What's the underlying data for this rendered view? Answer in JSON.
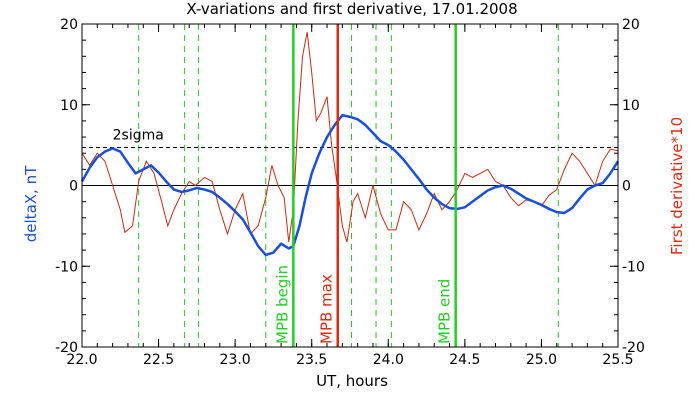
{
  "chart_data": {
    "type": "line",
    "title": "X-variations and first derivative, 17.01.2008",
    "xlabel": "UT, hours",
    "ylabel_left": "deltaX, nT",
    "ylabel_right": "First derivative*10",
    "xlim": [
      22.0,
      25.5
    ],
    "ylim": [
      -20,
      20
    ],
    "x_ticks": [
      "22.0",
      "22.5",
      "23.0",
      "23.5",
      "24.0",
      "24.5",
      "25.0",
      "25.5"
    ],
    "y_ticks": [
      "-20",
      "-10",
      "0",
      "10",
      "20"
    ],
    "colors": {
      "deltaX": "#1a4fd8",
      "derivative": "#cc2a10",
      "mpb_begin": "#22d022",
      "mpb_max": "#dd2a10",
      "mpb_end": "#22d022",
      "dashed_lines": "#22c822",
      "threshold": "#000000",
      "ylabel_left": "#1a4fd8",
      "ylabel_right": "#dd2a10"
    },
    "threshold": {
      "label": "2sigma",
      "value": 4.7
    },
    "zero_line": 0,
    "dashed_vlines": [
      22.37,
      22.67,
      22.76,
      23.2,
      23.76,
      23.92,
      24.02,
      25.11
    ],
    "markers": [
      {
        "label": "MPB begin",
        "x": 23.38
      },
      {
        "label": "MPB max",
        "x": 23.67
      },
      {
        "label": "MPB end",
        "x": 24.44
      }
    ],
    "series": [
      {
        "x": [
          22.0,
          22.05,
          22.1,
          22.15,
          22.2,
          22.25,
          22.3,
          22.35,
          22.4,
          22.45,
          22.5,
          22.55,
          22.6,
          22.65,
          22.7,
          22.75,
          22.8,
          22.85,
          22.9,
          22.95,
          23.0,
          23.05,
          23.1,
          23.15,
          23.2,
          23.25,
          23.3,
          23.35,
          23.38,
          23.42,
          23.46,
          23.5,
          23.55,
          23.6,
          23.65,
          23.7,
          23.75,
          23.8,
          23.85,
          23.9,
          23.95,
          24.0,
          24.05,
          24.1,
          24.15,
          24.2,
          24.25,
          24.3,
          24.35,
          24.4,
          24.45,
          24.5,
          24.55,
          24.6,
          24.65,
          24.7,
          24.75,
          24.8,
          24.85,
          24.9,
          24.95,
          25.0,
          25.05,
          25.1,
          25.15,
          25.2,
          25.25,
          25.3,
          25.35,
          25.4,
          25.45,
          25.5
        ],
        "values": [
          0.5,
          2.2,
          3.5,
          4.2,
          4.6,
          4.2,
          2.8,
          1.5,
          2.0,
          2.5,
          1.6,
          0.5,
          -0.5,
          -0.8,
          -0.6,
          -0.3,
          -0.5,
          -0.8,
          -1.5,
          -2.3,
          -3.2,
          -4.2,
          -5.8,
          -7.5,
          -8.6,
          -8.3,
          -7.2,
          -7.8,
          -7.5,
          -5.0,
          -1.5,
          1.5,
          4.0,
          6.0,
          7.5,
          8.7,
          8.5,
          8.2,
          7.5,
          6.5,
          5.5,
          5.0,
          4.2,
          3.2,
          2.0,
          0.8,
          -0.5,
          -1.5,
          -2.3,
          -2.8,
          -2.9,
          -2.7,
          -2.0,
          -1.3,
          -0.6,
          -0.2,
          0.0,
          -0.4,
          -1.0,
          -1.6,
          -2.0,
          -2.4,
          -2.9,
          -3.3,
          -3.4,
          -2.8,
          -1.6,
          -0.5,
          0.0,
          0.3,
          1.5,
          3.0
        ]
      },
      {
        "x": [
          22.0,
          22.05,
          22.1,
          22.15,
          22.2,
          22.25,
          22.28,
          22.33,
          22.37,
          22.42,
          22.47,
          22.52,
          22.56,
          22.6,
          22.65,
          22.7,
          22.74,
          22.8,
          22.85,
          22.9,
          22.95,
          23.0,
          23.05,
          23.1,
          23.15,
          23.2,
          23.24,
          23.28,
          23.32,
          23.35,
          23.38,
          23.41,
          23.44,
          23.47,
          23.5,
          23.53,
          23.56,
          23.6,
          23.63,
          23.66,
          23.7,
          23.73,
          23.77,
          23.8,
          23.85,
          23.9,
          23.95,
          24.0,
          24.05,
          24.1,
          24.15,
          24.2,
          24.25,
          24.3,
          24.35,
          24.4,
          24.45,
          24.5,
          24.55,
          24.6,
          24.65,
          24.7,
          24.75,
          24.8,
          24.85,
          24.9,
          24.95,
          25.0,
          25.05,
          25.1,
          25.15,
          25.2,
          25.25,
          25.3,
          25.35,
          25.4,
          25.45,
          25.5
        ],
        "values": [
          4.0,
          2.5,
          4.0,
          3.0,
          0.0,
          -3.0,
          -5.8,
          -5.0,
          0.5,
          3.0,
          1.5,
          -2.0,
          -5.0,
          -3.0,
          -1.0,
          0.5,
          0.0,
          1.0,
          0.5,
          -3.0,
          -6.0,
          -3.0,
          -1.0,
          -6.0,
          -5.0,
          -1.5,
          2.5,
          0.0,
          -1.5,
          -7.0,
          -3.0,
          8.0,
          16.0,
          19.0,
          14.0,
          8.0,
          9.0,
          11.0,
          5.0,
          1.0,
          -5.0,
          -7.0,
          -2.0,
          -1.0,
          -4.0,
          0.0,
          -3.5,
          -5.5,
          -5.5,
          -2.0,
          -3.0,
          -5.5,
          -3.5,
          -1.0,
          -3.0,
          -2.0,
          -0.5,
          1.5,
          1.0,
          1.5,
          2.0,
          0.5,
          0.0,
          -1.5,
          -2.5,
          -1.8,
          -2.0,
          -2.5,
          -1.2,
          -0.5,
          2.0,
          4.0,
          3.0,
          1.5,
          0.0,
          3.0,
          4.5,
          4.3
        ]
      }
    ]
  }
}
